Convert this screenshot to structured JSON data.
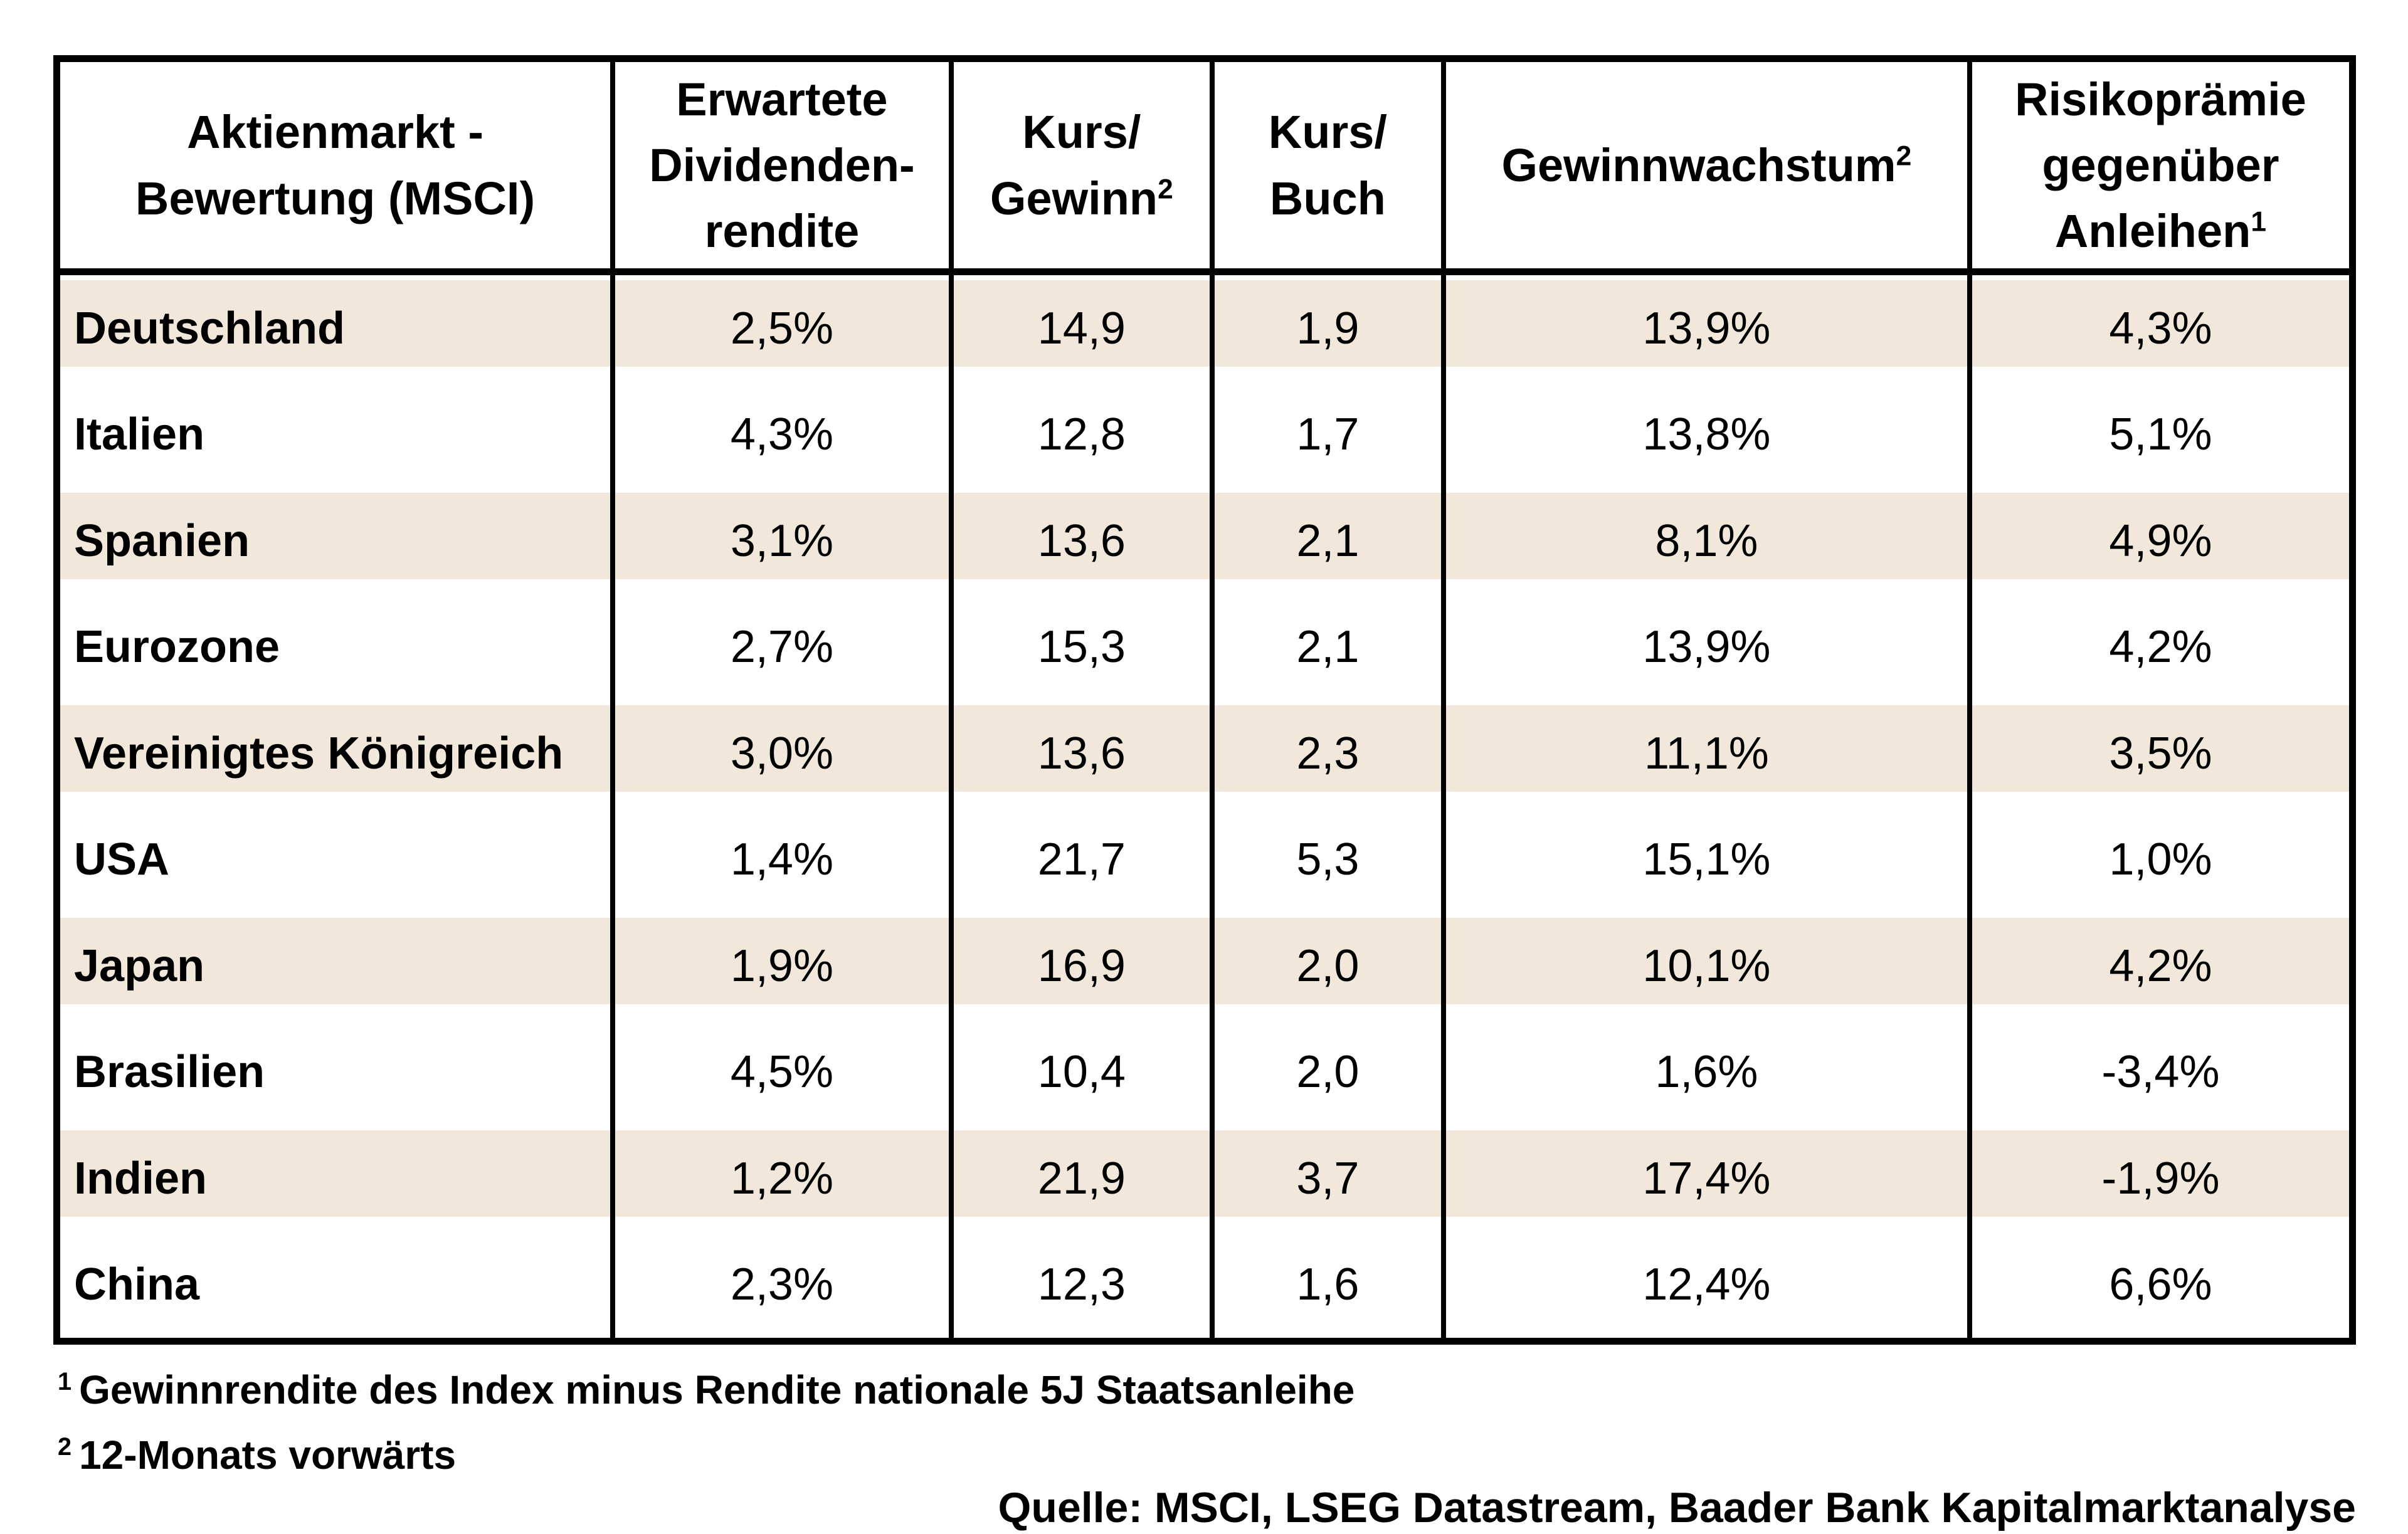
{
  "header": {
    "col1_line1": "Aktienmarkt -",
    "col1_line2": "Bewertung (MSCI)",
    "col2_line1": "Erwartete",
    "col2_line2": "Dividenden-",
    "col2_line3": "rendite",
    "col3_line1": "Kurs/",
    "col3_line2": "Gewinn",
    "col3_sup": "2",
    "col4_line1": "Kurs/",
    "col4_line2": "Buch",
    "col5_text": "Gewinnwachstum",
    "col5_sup": "2",
    "col6_line1": "Risikoprämie",
    "col6_line2": "gegenüber",
    "col6_line3": "Anleihen",
    "col6_sup": "1"
  },
  "rows": [
    {
      "country": "Deutschland",
      "dividend": "2,5%",
      "pe": "14,9",
      "pb": "1,9",
      "growth": "13,9%",
      "premium": "4,3%"
    },
    {
      "country": "Italien",
      "dividend": "4,3%",
      "pe": "12,8",
      "pb": "1,7",
      "growth": "13,8%",
      "premium": "5,1%"
    },
    {
      "country": "Spanien",
      "dividend": "3,1%",
      "pe": "13,6",
      "pb": "2,1",
      "growth": "8,1%",
      "premium": "4,9%"
    },
    {
      "country": "Eurozone",
      "dividend": "2,7%",
      "pe": "15,3",
      "pb": "2,1",
      "growth": "13,9%",
      "premium": "4,2%"
    },
    {
      "country": "Vereinigtes Königreich",
      "dividend": "3,0%",
      "pe": "13,6",
      "pb": "2,3",
      "growth": "11,1%",
      "premium": "3,5%"
    },
    {
      "country": "USA",
      "dividend": "1,4%",
      "pe": "21,7",
      "pb": "5,3",
      "growth": "15,1%",
      "premium": "1,0%"
    },
    {
      "country": "Japan",
      "dividend": "1,9%",
      "pe": "16,9",
      "pb": "2,0",
      "growth": "10,1%",
      "premium": "4,2%"
    },
    {
      "country": "Brasilien",
      "dividend": "4,5%",
      "pe": "10,4",
      "pb": "2,0",
      "growth": "1,6%",
      "premium": "-3,4%"
    },
    {
      "country": "Indien",
      "dividend": "1,2%",
      "pe": "21,9",
      "pb": "3,7",
      "growth": "17,4%",
      "premium": "-1,9%"
    },
    {
      "country": "China",
      "dividend": "2,3%",
      "pe": "12,3",
      "pb": "1,6",
      "growth": "12,4%",
      "premium": "6,6%"
    }
  ],
  "footnotes": {
    "fn1_sup": "1",
    "fn1_text": "Gewinnrendite des Index minus Rendite nationale 5J Staatsanleihe",
    "fn2_sup": "2",
    "fn2_text": "12-Monats vorwärts"
  },
  "source": "Quelle: MSCI, LSEG Datastream, Baader Bank Kapitalmarktanalyse",
  "colors": {
    "stripe": "#f1e8db",
    "border": "#000000",
    "background": "#ffffff",
    "text": "#000000"
  },
  "chart_data": {
    "type": "table",
    "title": "Aktienmarkt - Bewertung (MSCI)",
    "columns": [
      "Aktienmarkt - Bewertung (MSCI)",
      "Erwartete Dividendenrendite",
      "Kurs/Gewinn (12-Monats vorwärts)",
      "Kurs/Buch",
      "Gewinnwachstum (12-Monats vorwärts)",
      "Risikoprämie gegenüber Anleihen (Gewinnrendite des Index minus Rendite nationale 5J Staatsanleihe)"
    ],
    "rows": [
      [
        "Deutschland",
        "2,5%",
        "14,9",
        "1,9",
        "13,9%",
        "4,3%"
      ],
      [
        "Italien",
        "4,3%",
        "12,8",
        "1,7",
        "13,8%",
        "5,1%"
      ],
      [
        "Spanien",
        "3,1%",
        "13,6",
        "2,1",
        "8,1%",
        "4,9%"
      ],
      [
        "Eurozone",
        "2,7%",
        "15,3",
        "2,1",
        "13,9%",
        "4,2%"
      ],
      [
        "Vereinigtes Königreich",
        "3,0%",
        "13,6",
        "2,3",
        "11,1%",
        "3,5%"
      ],
      [
        "USA",
        "1,4%",
        "21,7",
        "5,3",
        "15,1%",
        "1,0%"
      ],
      [
        "Japan",
        "1,9%",
        "16,9",
        "2,0",
        "10,1%",
        "4,2%"
      ],
      [
        "Brasilien",
        "4,5%",
        "10,4",
        "2,0",
        "1,6%",
        "-3,4%"
      ],
      [
        "Indien",
        "1,2%",
        "21,9",
        "3,7",
        "17,4%",
        "-1,9%"
      ],
      [
        "China",
        "2,3%",
        "12,3",
        "1,6",
        "12,4%",
        "6,6%"
      ]
    ]
  }
}
